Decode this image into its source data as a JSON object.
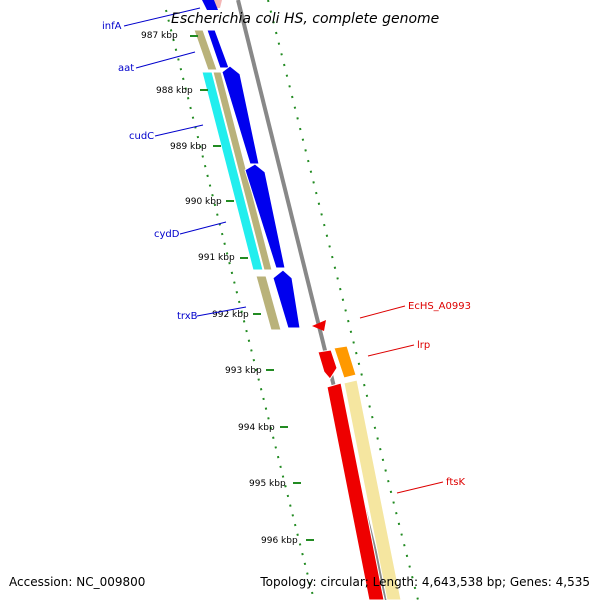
{
  "header": {
    "title": "Escherichia coli HS, complete genome"
  },
  "footer": {
    "accession": "Accession: NC_009800",
    "summary": "Topology: circular; Length: 4,643,538 bp; Genes: 4,535"
  },
  "kbp_ticks": [
    "987 kbp",
    "988 kbp",
    "989 kbp",
    "990 kbp",
    "991 kbp",
    "992 kbp",
    "993 kbp",
    "994 kbp",
    "995 kbp",
    "996 kbp"
  ],
  "gene_labels": [
    {
      "name": "infA",
      "strand": "reverse"
    },
    {
      "name": "aat",
      "strand": "reverse"
    },
    {
      "name": "cudC",
      "strand": "reverse"
    },
    {
      "name": "cydD",
      "strand": "reverse"
    },
    {
      "name": "trxB",
      "strand": "reverse"
    },
    {
      "name": "EcHS_A0993",
      "strand": "forward"
    },
    {
      "name": "lrp",
      "strand": "forward"
    },
    {
      "name": "ftsK",
      "strand": "forward"
    }
  ],
  "colors": {
    "reverse_label": "#0000cc",
    "forward_label": "#dd0000",
    "backbone": "#888888",
    "tick": "#228b22",
    "cds_reverse": "#0000ee",
    "gene_reverse": "#b9b27a",
    "cyan_feature": "#22eeee",
    "cds_forward": "#ee0000",
    "gene_forward": "#f5e6a0",
    "orange_feature": "#ff9900"
  }
}
